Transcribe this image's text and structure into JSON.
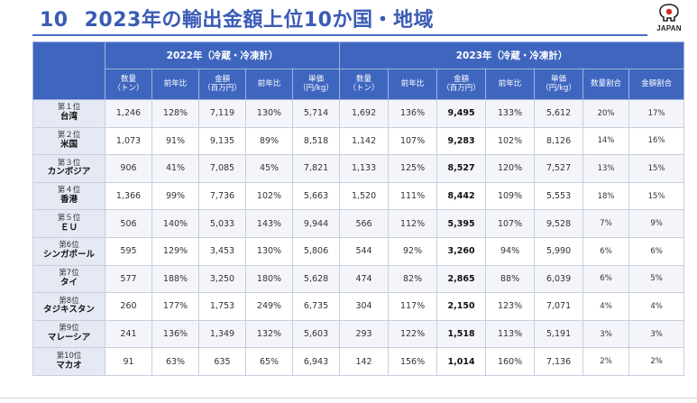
{
  "title": {
    "number": "10",
    "text": "2023年の輸出金額上位10か国・地域"
  },
  "logo": {
    "text": "JAPAN"
  },
  "groups": {
    "y2022": "2022年（冷蔵・冷凍計）",
    "y2023": "2023年（冷蔵・冷凍計）"
  },
  "columns": {
    "c2022": [
      "数量\n（トン）",
      "前年比",
      "金額\n（百万円）",
      "前年比",
      "単価\n（円/kg）"
    ],
    "c2023": [
      "数量\n（トン）",
      "前年比",
      "金額\n（百万円）",
      "前年比",
      "単価\n（円/kg）",
      "数量割合",
      "金額割合"
    ]
  },
  "rows": [
    {
      "rank": "第１位",
      "name": "台湾",
      "q22": "1,246",
      "qy22": "128%",
      "v22": "7,119",
      "vy22": "130%",
      "p22": "5,714",
      "q23": "1,692",
      "qy23": "136%",
      "v23": "9,495",
      "vy23": "133%",
      "p23": "5,612",
      "qs": "20%",
      "vs": "17%"
    },
    {
      "rank": "第２位",
      "name": "米国",
      "q22": "1,073",
      "qy22": "91%",
      "v22": "9,135",
      "vy22": "89%",
      "p22": "8,518",
      "q23": "1,142",
      "qy23": "107%",
      "v23": "9,283",
      "vy23": "102%",
      "p23": "8,126",
      "qs": "14%",
      "vs": "16%"
    },
    {
      "rank": "第３位",
      "name": "カンボジア",
      "q22": "906",
      "qy22": "41%",
      "v22": "7,085",
      "vy22": "45%",
      "p22": "7,821",
      "q23": "1,133",
      "qy23": "125%",
      "v23": "8,527",
      "vy23": "120%",
      "p23": "7,527",
      "qs": "13%",
      "vs": "15%"
    },
    {
      "rank": "第４位",
      "name": "香港",
      "q22": "1,366",
      "qy22": "99%",
      "v22": "7,736",
      "vy22": "102%",
      "p22": "5,663",
      "q23": "1,520",
      "qy23": "111%",
      "v23": "8,442",
      "vy23": "109%",
      "p23": "5,553",
      "qs": "18%",
      "vs": "15%"
    },
    {
      "rank": "第５位",
      "name": "ＥＵ",
      "q22": "506",
      "qy22": "140%",
      "v22": "5,033",
      "vy22": "143%",
      "p22": "9,944",
      "q23": "566",
      "qy23": "112%",
      "v23": "5,395",
      "vy23": "107%",
      "p23": "9,528",
      "qs": "7%",
      "vs": "9%"
    },
    {
      "rank": "第6位",
      "name": "シンガポール",
      "q22": "595",
      "qy22": "129%",
      "v22": "3,453",
      "vy22": "130%",
      "p22": "5,806",
      "q23": "544",
      "qy23": "92%",
      "v23": "3,260",
      "vy23": "94%",
      "p23": "5,990",
      "qs": "6%",
      "vs": "6%"
    },
    {
      "rank": "第7位",
      "name": "タイ",
      "q22": "577",
      "qy22": "188%",
      "v22": "3,250",
      "vy22": "180%",
      "p22": "5,628",
      "q23": "474",
      "qy23": "82%",
      "v23": "2,865",
      "vy23": "88%",
      "p23": "6,039",
      "qs": "6%",
      "vs": "5%"
    },
    {
      "rank": "第8位",
      "name": "タジキスタン",
      "q22": "260",
      "qy22": "177%",
      "v22": "1,753",
      "vy22": "249%",
      "p22": "6,735",
      "q23": "304",
      "qy23": "117%",
      "v23": "2,150",
      "vy23": "123%",
      "p23": "7,071",
      "qs": "4%",
      "vs": "4%"
    },
    {
      "rank": "第9位",
      "name": "マレーシア",
      "q22": "241",
      "qy22": "136%",
      "v22": "1,349",
      "vy22": "132%",
      "p22": "5,603",
      "q23": "293",
      "qy23": "122%",
      "v23": "1,518",
      "vy23": "113%",
      "p23": "5,191",
      "qs": "3%",
      "vs": "3%"
    },
    {
      "rank": "第10位",
      "name": "マカオ",
      "q22": "91",
      "qy22": "63%",
      "v22": "635",
      "vy22": "65%",
      "p22": "6,943",
      "q23": "142",
      "qy23": "156%",
      "v23": "1,014",
      "vy23": "160%",
      "p23": "7,136",
      "qs": "2%",
      "vs": "2%"
    }
  ]
}
